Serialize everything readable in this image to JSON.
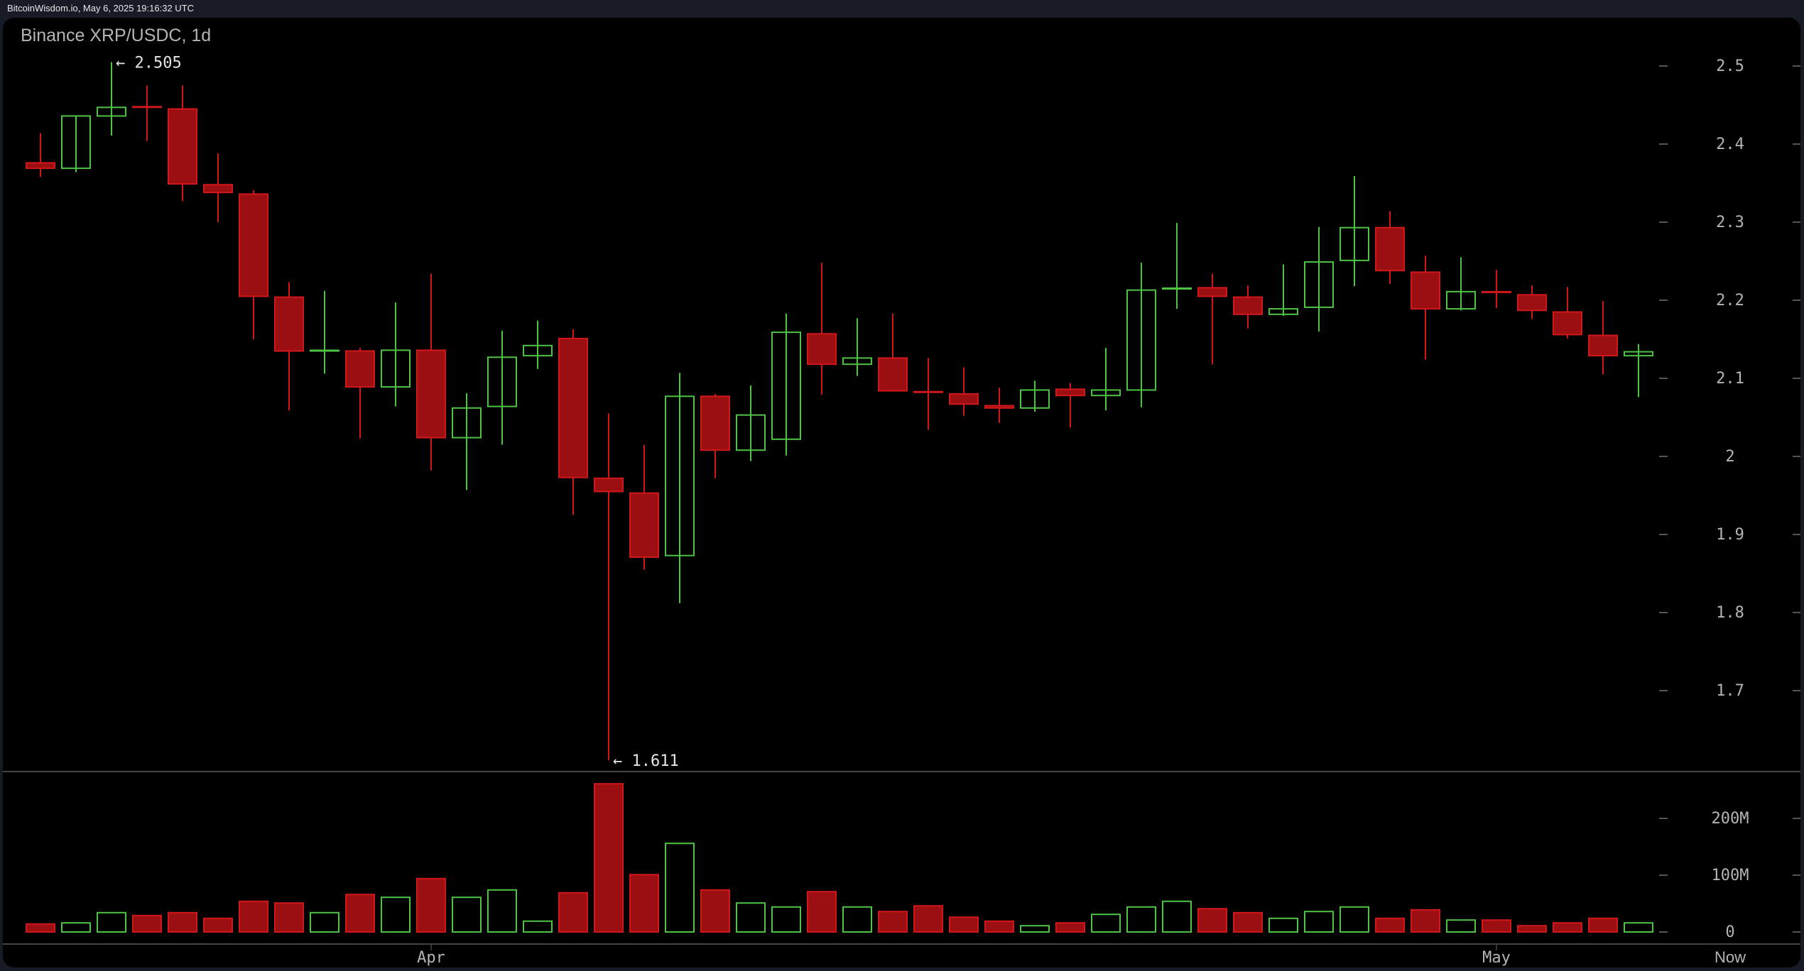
{
  "header": {
    "source_timestamp": "BitcoinWisdom.io, May 6, 2025 19:16:32 UTC"
  },
  "chart": {
    "title": "Binance XRP/USDC, 1d"
  },
  "colors": {
    "page_bg": "#161b26",
    "panel_bg": "#000000",
    "up": "#4ec244",
    "down_border": "#d0181b",
    "down_fill": "#9b0f12",
    "axis_text": "#b5b5b5",
    "grid_line": "#444444"
  },
  "chart_data": {
    "type": "candlestick",
    "title": "Binance XRP/USDC, 1d",
    "xlabel": "",
    "ylabel": "",
    "ylim": [
      1.6,
      2.52
    ],
    "grid": false,
    "price_ticks": [
      "2.5",
      "2.4",
      "2.3",
      "2.2",
      "2.1",
      "2",
      "1.9",
      "1.8",
      "1.7"
    ],
    "volume_ticks": [
      "200M",
      "100M",
      "0"
    ],
    "x_tick_labels": [
      {
        "label": "Apr",
        "index": 11
      },
      {
        "label": "May",
        "index": 41
      },
      {
        "label": "Now",
        "index": -1
      }
    ],
    "annotations": [
      {
        "text": "← 2.505",
        "type": "high",
        "index": 2,
        "value": 2.505
      },
      {
        "text": "← 1.611",
        "type": "low",
        "index": 16,
        "value": 1.611
      }
    ],
    "candles": [
      {
        "o": 2.376,
        "h": 2.414,
        "l": 2.358,
        "c": 2.369,
        "v": 14
      },
      {
        "o": 2.369,
        "h": 2.436,
        "l": 2.364,
        "c": 2.436,
        "v": 16
      },
      {
        "o": 2.436,
        "h": 2.505,
        "l": 2.411,
        "c": 2.447,
        "v": 34
      },
      {
        "o": 2.448,
        "h": 2.475,
        "l": 2.404,
        "c": 2.447,
        "v": 29
      },
      {
        "o": 2.445,
        "h": 2.475,
        "l": 2.327,
        "c": 2.349,
        "v": 34
      },
      {
        "o": 2.348,
        "h": 2.388,
        "l": 2.3,
        "c": 2.338,
        "v": 24
      },
      {
        "o": 2.336,
        "h": 2.341,
        "l": 2.15,
        "c": 2.205,
        "v": 54
      },
      {
        "o": 2.204,
        "h": 2.223,
        "l": 2.059,
        "c": 2.135,
        "v": 51
      },
      {
        "o": 2.135,
        "h": 2.212,
        "l": 2.106,
        "c": 2.136,
        "v": 34
      },
      {
        "o": 2.135,
        "h": 2.139,
        "l": 2.023,
        "c": 2.089,
        "v": 66
      },
      {
        "o": 2.089,
        "h": 2.197,
        "l": 2.064,
        "c": 2.136,
        "v": 61
      },
      {
        "o": 2.136,
        "h": 2.234,
        "l": 1.982,
        "c": 2.024,
        "v": 94
      },
      {
        "o": 2.024,
        "h": 2.081,
        "l": 1.957,
        "c": 2.062,
        "v": 61
      },
      {
        "o": 2.064,
        "h": 2.161,
        "l": 2.015,
        "c": 2.127,
        "v": 74
      },
      {
        "o": 2.129,
        "h": 2.174,
        "l": 2.112,
        "c": 2.142,
        "v": 19
      },
      {
        "o": 2.151,
        "h": 2.163,
        "l": 1.925,
        "c": 1.973,
        "v": 69
      },
      {
        "o": 1.972,
        "h": 2.055,
        "l": 1.611,
        "c": 1.955,
        "v": 261
      },
      {
        "o": 1.953,
        "h": 2.015,
        "l": 1.855,
        "c": 1.871,
        "v": 101
      },
      {
        "o": 1.873,
        "h": 2.107,
        "l": 1.812,
        "c": 2.077,
        "v": 156
      },
      {
        "o": 2.077,
        "h": 2.08,
        "l": 1.972,
        "c": 2.008,
        "v": 74
      },
      {
        "o": 2.008,
        "h": 2.091,
        "l": 1.994,
        "c": 2.053,
        "v": 51
      },
      {
        "o": 2.022,
        "h": 2.183,
        "l": 2.001,
        "c": 2.159,
        "v": 44
      },
      {
        "o": 2.157,
        "h": 2.248,
        "l": 2.079,
        "c": 2.118,
        "v": 71
      },
      {
        "o": 2.118,
        "h": 2.177,
        "l": 2.103,
        "c": 2.126,
        "v": 44
      },
      {
        "o": 2.126,
        "h": 2.183,
        "l": 2.084,
        "c": 2.084,
        "v": 36
      },
      {
        "o": 2.083,
        "h": 2.126,
        "l": 2.034,
        "c": 2.082,
        "v": 46
      },
      {
        "o": 2.08,
        "h": 2.114,
        "l": 2.052,
        "c": 2.067,
        "v": 26
      },
      {
        "o": 2.065,
        "h": 2.088,
        "l": 2.043,
        "c": 2.062,
        "v": 19
      },
      {
        "o": 2.062,
        "h": 2.097,
        "l": 2.057,
        "c": 2.085,
        "v": 11
      },
      {
        "o": 2.086,
        "h": 2.094,
        "l": 2.037,
        "c": 2.078,
        "v": 16
      },
      {
        "o": 2.078,
        "h": 2.139,
        "l": 2.059,
        "c": 2.085,
        "v": 31
      },
      {
        "o": 2.085,
        "h": 2.248,
        "l": 2.063,
        "c": 2.213,
        "v": 44
      },
      {
        "o": 2.214,
        "h": 2.299,
        "l": 2.189,
        "c": 2.216,
        "v": 54
      },
      {
        "o": 2.216,
        "h": 2.234,
        "l": 2.118,
        "c": 2.205,
        "v": 41
      },
      {
        "o": 2.204,
        "h": 2.219,
        "l": 2.164,
        "c": 2.182,
        "v": 34
      },
      {
        "o": 2.182,
        "h": 2.246,
        "l": 2.18,
        "c": 2.189,
        "v": 24
      },
      {
        "o": 2.191,
        "h": 2.294,
        "l": 2.16,
        "c": 2.249,
        "v": 36
      },
      {
        "o": 2.251,
        "h": 2.359,
        "l": 2.218,
        "c": 2.293,
        "v": 44
      },
      {
        "o": 2.293,
        "h": 2.314,
        "l": 2.221,
        "c": 2.238,
        "v": 24
      },
      {
        "o": 2.236,
        "h": 2.257,
        "l": 2.124,
        "c": 2.189,
        "v": 39
      },
      {
        "o": 2.189,
        "h": 2.255,
        "l": 2.187,
        "c": 2.211,
        "v": 21
      },
      {
        "o": 2.211,
        "h": 2.239,
        "l": 2.19,
        "c": 2.21,
        "v": 21
      },
      {
        "o": 2.207,
        "h": 2.219,
        "l": 2.176,
        "c": 2.187,
        "v": 11
      },
      {
        "o": 2.185,
        "h": 2.217,
        "l": 2.151,
        "c": 2.156,
        "v": 16
      },
      {
        "o": 2.155,
        "h": 2.199,
        "l": 2.105,
        "c": 2.129,
        "v": 24
      },
      {
        "o": 2.129,
        "h": 2.144,
        "l": 2.076,
        "c": 2.134,
        "v": 16
      }
    ],
    "volume_unit": "M"
  }
}
